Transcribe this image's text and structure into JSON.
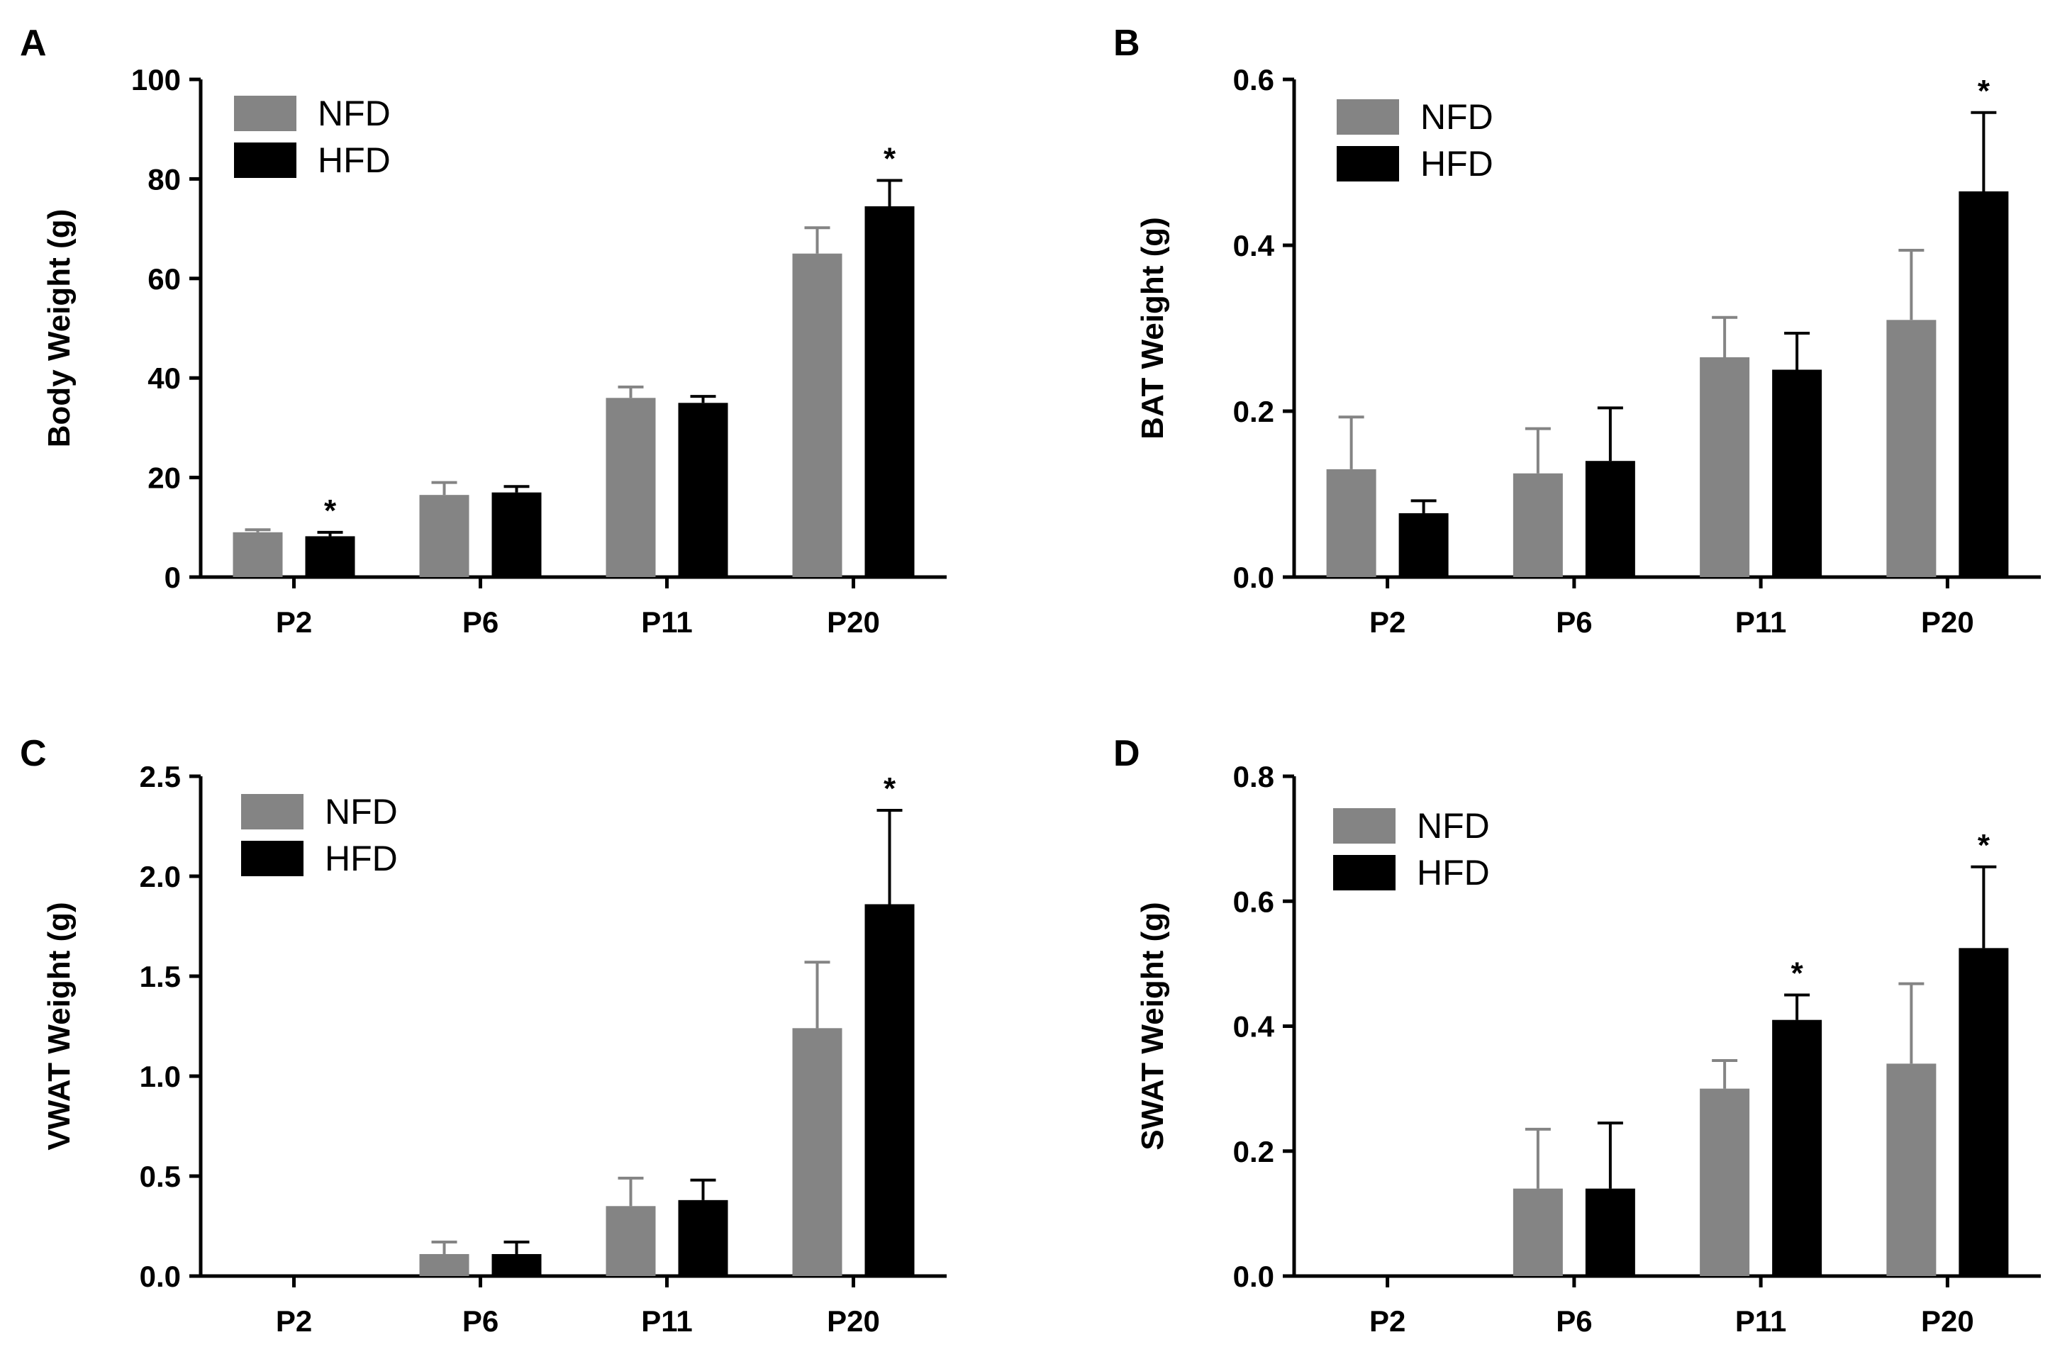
{
  "colors": {
    "NFD": "#848484",
    "HFD": "#000000",
    "axis": "#000000"
  },
  "chart_data": [
    {
      "panel": "A",
      "type": "bar",
      "categories": [
        "P2",
        "P6",
        "P11",
        "P20"
      ],
      "ylabel": "Body Weight (g)",
      "xlabel": "",
      "ylim": [
        0,
        100
      ],
      "yticks": [
        0,
        20,
        40,
        60,
        80,
        100
      ],
      "ytick_labels": [
        "0",
        "20",
        "40",
        "60",
        "80",
        "100"
      ],
      "legend": [
        "NFD",
        "HFD"
      ],
      "legend_position": "top-left",
      "series": [
        {
          "name": "NFD",
          "values": [
            9,
            16.5,
            36,
            65
          ],
          "errors": [
            0.5,
            2.5,
            2.2,
            5.2
          ],
          "significant": [
            false,
            false,
            false,
            false
          ]
        },
        {
          "name": "HFD",
          "values": [
            8.2,
            17,
            35,
            74.5
          ],
          "errors": [
            0.8,
            1.2,
            1.3,
            5.2
          ],
          "significant": [
            true,
            false,
            false,
            true
          ]
        }
      ],
      "significance_marker": "*"
    },
    {
      "panel": "B",
      "type": "bar",
      "categories": [
        "P2",
        "P6",
        "P11",
        "P20"
      ],
      "ylabel": "BAT Weight (g)",
      "xlabel": "",
      "ylim": [
        0,
        0.6
      ],
      "yticks": [
        0,
        0.2,
        0.4,
        0.6
      ],
      "ytick_labels": [
        "0.0",
        "0.2",
        "0.4",
        "0.6"
      ],
      "legend": [
        "NFD",
        "HFD"
      ],
      "legend_position": "top-left",
      "series": [
        {
          "name": "NFD",
          "values": [
            0.13,
            0.125,
            0.265,
            0.31
          ],
          "errors": [
            0.063,
            0.054,
            0.048,
            0.084
          ],
          "significant": [
            false,
            false,
            false,
            false
          ]
        },
        {
          "name": "HFD",
          "values": [
            0.077,
            0.14,
            0.25,
            0.465
          ],
          "errors": [
            0.015,
            0.064,
            0.044,
            0.095
          ],
          "significant": [
            false,
            false,
            false,
            true
          ]
        }
      ],
      "significance_marker": "*"
    },
    {
      "panel": "C",
      "type": "bar",
      "categories": [
        "P2",
        "P6",
        "P11",
        "P20"
      ],
      "ylabel": "VWAT Weight (g)",
      "xlabel": "",
      "ylim": [
        0,
        2.5
      ],
      "yticks": [
        0,
        0.5,
        1.0,
        1.5,
        2.0,
        2.5
      ],
      "ytick_labels": [
        "0.0",
        "0.5",
        "1.0",
        "1.5",
        "2.0",
        "2.5"
      ],
      "legend": [
        "NFD",
        "HFD"
      ],
      "legend_position": "top-left",
      "series": [
        {
          "name": "NFD",
          "values": [
            0,
            0.11,
            0.35,
            1.24
          ],
          "errors": [
            0,
            0.06,
            0.14,
            0.33
          ],
          "significant": [
            false,
            false,
            false,
            false
          ]
        },
        {
          "name": "HFD",
          "values": [
            0,
            0.11,
            0.38,
            1.86
          ],
          "errors": [
            0,
            0.06,
            0.1,
            0.47
          ],
          "significant": [
            false,
            false,
            false,
            true
          ]
        }
      ],
      "significance_marker": "*"
    },
    {
      "panel": "D",
      "type": "bar",
      "categories": [
        "P2",
        "P6",
        "P11",
        "P20"
      ],
      "ylabel": "SWAT Weight (g)",
      "xlabel": "",
      "ylim": [
        0,
        0.8
      ],
      "yticks": [
        0,
        0.2,
        0.4,
        0.6,
        0.8
      ],
      "ytick_labels": [
        "0.0",
        "0.2",
        "0.4",
        "0.6",
        "0.8"
      ],
      "legend": [
        "NFD",
        "HFD"
      ],
      "legend_position": "top-left",
      "series": [
        {
          "name": "NFD",
          "values": [
            0,
            0.14,
            0.3,
            0.34
          ],
          "errors": [
            0,
            0.095,
            0.045,
            0.128
          ],
          "significant": [
            false,
            false,
            false,
            false
          ]
        },
        {
          "name": "HFD",
          "values": [
            0,
            0.14,
            0.41,
            0.525
          ],
          "errors": [
            0,
            0.105,
            0.04,
            0.13
          ],
          "significant": [
            false,
            false,
            true,
            true
          ]
        }
      ],
      "significance_marker": "*"
    }
  ]
}
